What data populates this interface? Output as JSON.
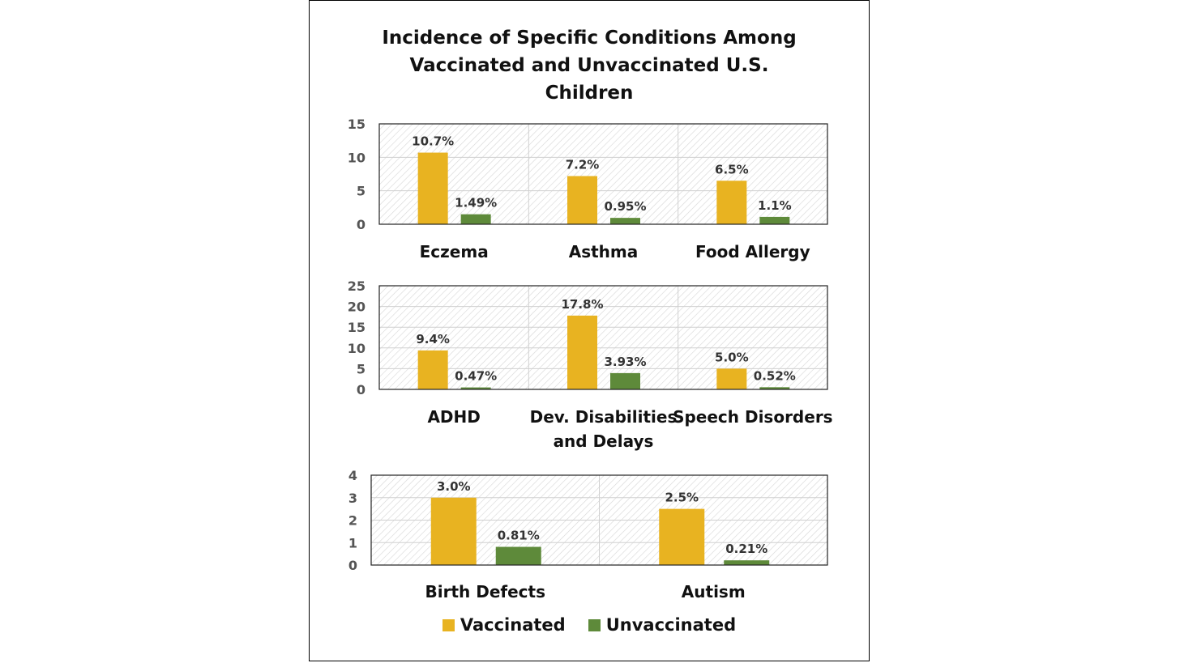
{
  "colors": {
    "vaccinated": "#E8B321",
    "unvaccinated": "#5E8A3A",
    "grid": "#d0d0d0",
    "hatch": "#cfcfcf"
  },
  "chart_data": [
    {
      "type": "bar",
      "title": "Incidence of Specific Conditions Among Vaccinated and Unvaccinated U.S. Children",
      "title_lines": [
        "Incidence of Specific Conditions Among",
        "Vaccinated and Unvaccinated U.S.",
        "Children"
      ],
      "categories": [
        [
          "Eczema"
        ],
        [
          "Asthma"
        ],
        [
          "Food Allergy"
        ]
      ],
      "series": [
        {
          "name": "Vaccinated",
          "values": [
            10.7,
            7.2,
            6.5
          ],
          "labels": [
            "10.7%",
            "7.2%",
            "6.5%"
          ]
        },
        {
          "name": "Unvaccinated",
          "values": [
            1.49,
            0.95,
            1.1
          ],
          "labels": [
            "1.49%",
            "0.95%",
            "1.1%"
          ]
        }
      ],
      "ylim": [
        0,
        15
      ],
      "yticks": [
        0,
        5,
        10,
        15
      ],
      "grid": true
    },
    {
      "type": "bar",
      "categories": [
        [
          "ADHD"
        ],
        [
          "Dev. Disabilities",
          "and Delays"
        ],
        [
          "Speech Disorders"
        ]
      ],
      "series": [
        {
          "name": "Vaccinated",
          "values": [
            9.4,
            17.8,
            5.0
          ],
          "labels": [
            "9.4%",
            "17.8%",
            "5.0%"
          ]
        },
        {
          "name": "Unvaccinated",
          "values": [
            0.47,
            3.93,
            0.52
          ],
          "labels": [
            "0.47%",
            "3.93%",
            "0.52%"
          ]
        }
      ],
      "ylim": [
        0,
        25
      ],
      "yticks": [
        0,
        5,
        10,
        15,
        20,
        25
      ],
      "grid": true
    },
    {
      "type": "bar",
      "categories": [
        [
          "Birth Defects"
        ],
        [
          "Autism"
        ]
      ],
      "series": [
        {
          "name": "Vaccinated",
          "values": [
            3.0,
            2.5
          ],
          "labels": [
            "3.0%",
            "2.5%"
          ]
        },
        {
          "name": "Unvaccinated",
          "values": [
            0.81,
            0.21
          ],
          "labels": [
            "0.81%",
            "0.21%"
          ]
        }
      ],
      "ylim": [
        0,
        4
      ],
      "yticks": [
        0,
        1,
        2,
        3,
        4
      ],
      "grid": true
    }
  ],
  "legend": {
    "placement": "bottom",
    "items": [
      "Vaccinated",
      "Unvaccinated"
    ]
  }
}
